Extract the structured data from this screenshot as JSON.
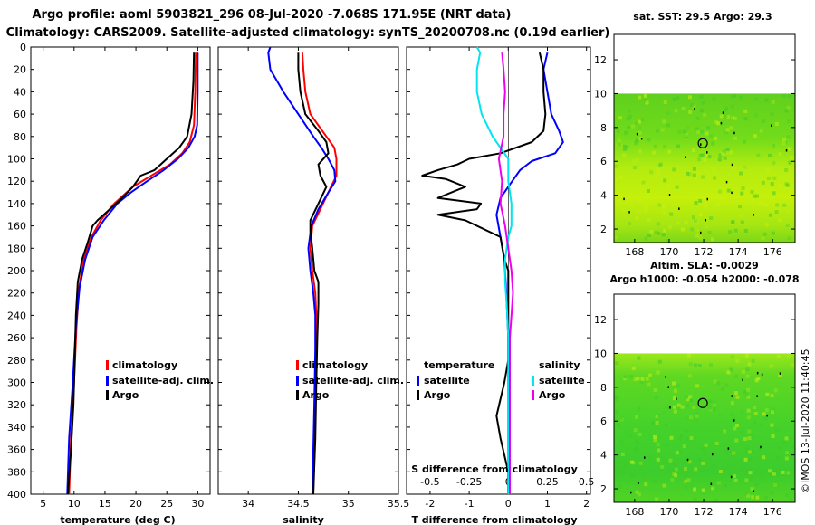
{
  "header": {
    "title_line1": "Argo profile: aoml 5903821_296 08-Jul-2020 -7.068S 171.95E (NRT data)",
    "title_line2": "Climatology: CARS2009. Satellite-adjusted climatology: synTS_20200708.nc (0.19d earlier)"
  },
  "colors": {
    "climatology": "#ff0000",
    "satellite": "#0000ff",
    "argo": "#000000",
    "sal_satellite": "#00e5ee",
    "sal_argo": "#ee00ee"
  },
  "depth_ticks": [
    "0",
    "20",
    "40",
    "60",
    "80",
    "100",
    "120",
    "140",
    "160",
    "180",
    "200",
    "220",
    "240",
    "260",
    "280",
    "300",
    "320",
    "340",
    "360",
    "380",
    "400"
  ],
  "chart_data": [
    {
      "type": "line",
      "id": "temperature",
      "xlabel": "temperature (deg C)",
      "ylabel": "depth",
      "xlim": [
        3,
        32
      ],
      "ylim": [
        400,
        0
      ],
      "xticks": [
        "5",
        "10",
        "15",
        "20",
        "25",
        "30"
      ],
      "legend": [
        "climatology",
        "satellite-adj. clim.",
        "Argo"
      ],
      "series": [
        {
          "name": "climatology",
          "color": "#ff0000",
          "depth": [
            5,
            40,
            70,
            85,
            95,
            105,
            115,
            125,
            140,
            155,
            170,
            190,
            215,
            250,
            300,
            350,
            400
          ],
          "values": [
            29.7,
            29.6,
            29.4,
            28.7,
            27.5,
            25.5,
            22.5,
            19.5,
            16.5,
            14.3,
            12.8,
            11.6,
            10.8,
            10.4,
            10.0,
            9.5,
            9.2
          ]
        },
        {
          "name": "satellite-adj. clim.",
          "color": "#0000ff",
          "depth": [
            5,
            40,
            70,
            80,
            90,
            100,
            110,
            120,
            130,
            140,
            155,
            170,
            190,
            215,
            250,
            300,
            350,
            400
          ],
          "values": [
            30.0,
            30.0,
            29.9,
            29.5,
            28.5,
            26.8,
            24.5,
            21.8,
            19.2,
            17.0,
            14.8,
            13.0,
            11.8,
            10.9,
            10.3,
            9.8,
            9.2,
            8.9
          ]
        },
        {
          "name": "Argo",
          "color": "#000000",
          "depth": [
            5,
            30,
            60,
            80,
            90,
            100,
            110,
            115,
            125,
            135,
            145,
            155,
            160,
            175,
            190,
            210,
            240,
            280,
            320,
            360,
            400
          ],
          "values": [
            29.4,
            29.3,
            29.0,
            28.3,
            27.0,
            25.0,
            23.0,
            20.8,
            19.5,
            17.8,
            15.8,
            13.8,
            13.0,
            12.2,
            11.3,
            10.6,
            10.3,
            10.1,
            9.9,
            9.5,
            9.0
          ]
        }
      ]
    },
    {
      "type": "line",
      "id": "salinity",
      "xlabel": "salinity",
      "ylabel": "depth",
      "xlim": [
        33.7,
        35.5
      ],
      "ylim": [
        400,
        0
      ],
      "xticks": [
        "34",
        "34.5",
        "35",
        "35.5"
      ],
      "legend": [
        "climatology",
        "satellite-adj. clim.",
        "Argo"
      ],
      "series": [
        {
          "name": "climatology",
          "color": "#ff0000",
          "depth": [
            5,
            20,
            40,
            60,
            80,
            90,
            100,
            115,
            130,
            145,
            160,
            180,
            200,
            220,
            240,
            270,
            320,
            400
          ],
          "values": [
            34.54,
            34.55,
            34.57,
            34.62,
            34.78,
            34.86,
            34.88,
            34.88,
            34.8,
            34.72,
            34.64,
            34.62,
            34.64,
            34.67,
            34.68,
            34.68,
            34.67,
            34.65
          ]
        },
        {
          "name": "satellite-adj. clim.",
          "color": "#0000ff",
          "depth": [
            0,
            5,
            20,
            40,
            60,
            80,
            90,
            100,
            110,
            120,
            130,
            145,
            160,
            180,
            200,
            220,
            240,
            270,
            320,
            400
          ],
          "values": [
            34.22,
            34.2,
            34.22,
            34.35,
            34.5,
            34.65,
            34.73,
            34.8,
            34.86,
            34.87,
            34.8,
            34.7,
            34.63,
            34.6,
            34.62,
            34.65,
            34.67,
            34.67,
            34.66,
            34.64
          ]
        },
        {
          "name": "Argo",
          "color": "#000000",
          "depth": [
            5,
            20,
            40,
            60,
            75,
            85,
            95,
            105,
            115,
            125,
            140,
            155,
            165,
            180,
            200,
            210,
            230,
            260,
            300,
            350,
            400
          ],
          "values": [
            34.5,
            34.5,
            34.52,
            34.57,
            34.7,
            34.78,
            34.8,
            34.7,
            34.72,
            34.78,
            34.7,
            34.62,
            34.62,
            34.64,
            34.66,
            34.7,
            34.7,
            34.69,
            34.68,
            34.67,
            34.65
          ]
        }
      ]
    },
    {
      "type": "line",
      "id": "difference",
      "xlabel": "T difference from climatology",
      "x2label": "S difference from climatology",
      "ylabel": "depth",
      "xlim": [
        -2.6,
        2.1
      ],
      "x2lim": [
        -0.65,
        0.525
      ],
      "ylim": [
        400,
        0
      ],
      "xticks": [
        "-2",
        "-1",
        "0",
        "1",
        "2"
      ],
      "x2ticks": [
        "-0.5",
        "-0.25",
        "0",
        "0.25",
        "0.5"
      ],
      "legend": {
        "temperature_header": "temperature",
        "salinity_header": "salinity",
        "items": [
          "satellite",
          "Argo",
          "satellite",
          "Argo"
        ]
      },
      "series": [
        {
          "name": "temperature satellite",
          "axis": "T",
          "color": "#0000ff",
          "depth": [
            5,
            20,
            40,
            60,
            75,
            85,
            95,
            102,
            110,
            120,
            135,
            150,
            170,
            190,
            220,
            260,
            300,
            400
          ],
          "values": [
            1.0,
            0.9,
            1.0,
            1.1,
            1.3,
            1.4,
            1.2,
            0.6,
            0.3,
            0.1,
            -0.2,
            -0.3,
            -0.2,
            -0.1,
            -0.05,
            0,
            0,
            0
          ]
        },
        {
          "name": "temperature Argo",
          "axis": "T",
          "color": "#000000",
          "depth": [
            5,
            20,
            40,
            60,
            75,
            85,
            95,
            100,
            105,
            110,
            115,
            118,
            125,
            135,
            140,
            145,
            150,
            155,
            170,
            190,
            200,
            220,
            250,
            280,
            300,
            330,
            350,
            380,
            400
          ],
          "values": [
            0.8,
            0.9,
            0.9,
            0.95,
            0.9,
            0.6,
            -0.2,
            -1.0,
            -1.3,
            -1.8,
            -2.2,
            -1.6,
            -1.1,
            -1.8,
            -0.7,
            -0.8,
            -1.8,
            -1.1,
            -0.2,
            -0.1,
            0,
            0,
            0,
            0,
            -0.1,
            -0.3,
            -0.2,
            0,
            0
          ]
        },
        {
          "name": "salinity satellite",
          "axis": "S",
          "color": "#00e5ee",
          "depth": [
            0,
            5,
            20,
            40,
            60,
            80,
            100,
            120,
            140,
            160,
            170,
            190,
            210,
            230,
            260,
            300,
            350,
            400
          ],
          "values": [
            -0.2,
            -0.18,
            -0.2,
            -0.2,
            -0.17,
            -0.1,
            0,
            0,
            0.02,
            0.02,
            0,
            -0.02,
            -0.02,
            -0.01,
            0,
            0,
            0,
            0
          ]
        },
        {
          "name": "salinity Argo",
          "axis": "S",
          "color": "#ee00ee",
          "depth": [
            5,
            20,
            40,
            60,
            80,
            100,
            120,
            140,
            160,
            180,
            200,
            220,
            240,
            260,
            300,
            350,
            400
          ],
          "values": [
            -0.04,
            -0.03,
            -0.02,
            -0.03,
            -0.03,
            -0.06,
            -0.04,
            -0.05,
            -0.02,
            0,
            0.02,
            0.03,
            0.02,
            0.01,
            0.01,
            0.01,
            0.01
          ]
        }
      ]
    }
  ],
  "maps": [
    {
      "id": "sst",
      "title": "sat. SST: 29.5 Argo: 29.3",
      "xticks": [
        "168",
        "170",
        "172",
        "174",
        "176"
      ],
      "yticks": [
        "12",
        "10",
        "8",
        "6",
        "4",
        "2"
      ],
      "xlim": [
        166.8,
        177.3
      ],
      "ylim": [
        1.2,
        13.5
      ],
      "data_top": 10,
      "marker": {
        "lon": 171.95,
        "lat": 7.07
      }
    },
    {
      "id": "sla",
      "title_line1": "Altim. SLA: -0.0029",
      "title_line2": "Argo h1000: -0.054 h2000: -0.078",
      "xticks": [
        "168",
        "170",
        "172",
        "174",
        "176"
      ],
      "yticks": [
        "12",
        "10",
        "8",
        "6",
        "4",
        "2"
      ],
      "xlim": [
        166.8,
        177.3
      ],
      "ylim": [
        1.2,
        13.5
      ],
      "data_top": 10,
      "marker": {
        "lon": 171.95,
        "lat": 7.07
      }
    }
  ],
  "footer": {
    "credit": "©IMOS 13-Jul-2020 11:40:45"
  }
}
